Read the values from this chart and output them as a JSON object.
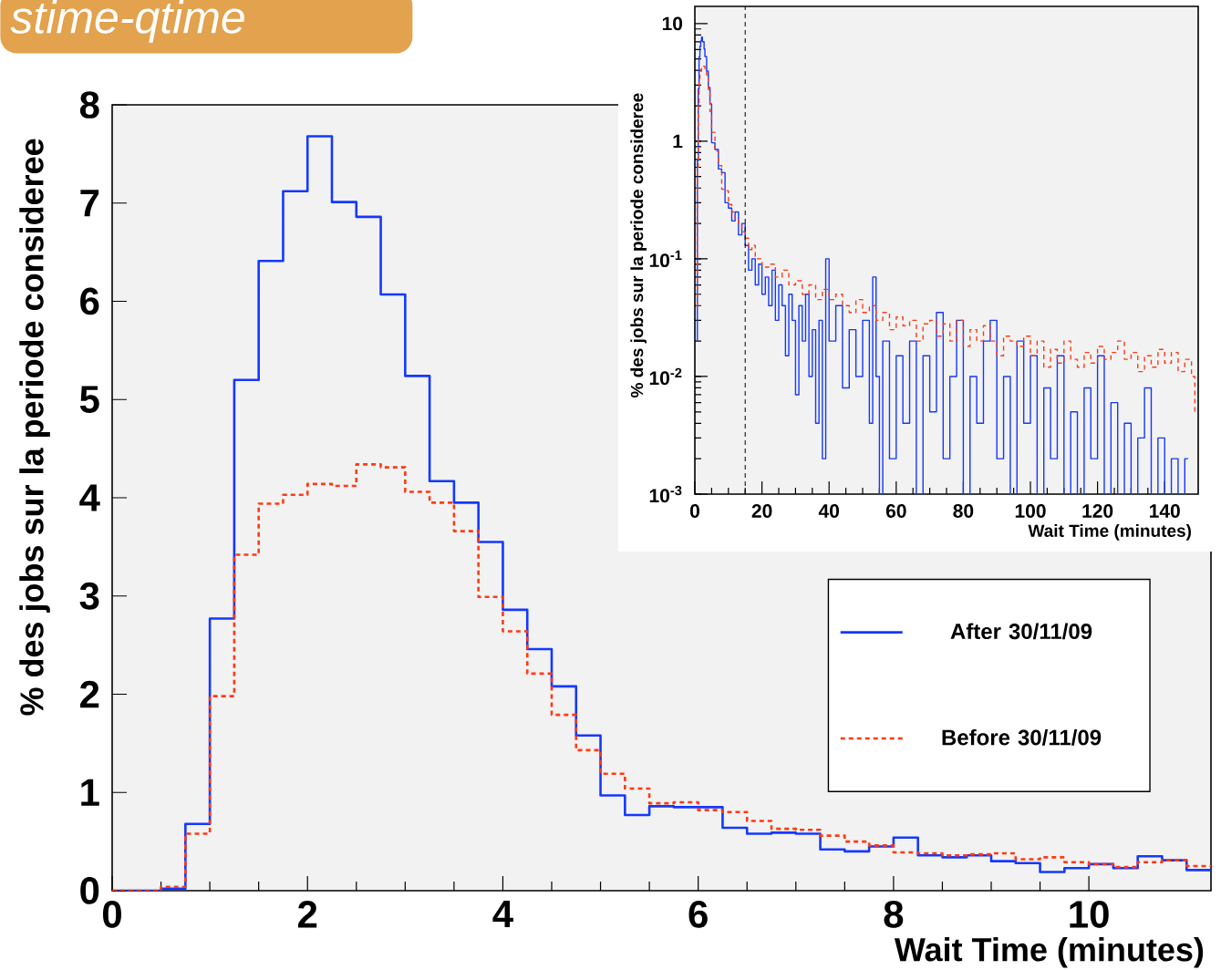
{
  "chart_data": [
    {
      "type": "histogram",
      "title": "stime-qtime",
      "xlabel": "Wait Time (minutes)",
      "ylabel": "% des jobs sur la periode consideree",
      "bins": [
        0,
        0.25,
        0.5,
        0.75,
        1,
        1.25,
        1.5,
        1.75,
        2,
        2.25,
        2.5,
        2.75,
        3,
        3.25,
        3.5,
        3.75,
        4,
        4.25,
        4.5,
        4.75,
        5,
        5.25,
        5.5,
        5.75,
        6,
        6.25,
        6.5,
        6.75,
        7,
        7.25,
        7.5,
        7.75,
        8,
        8.25,
        8.5,
        8.75,
        9,
        9.25,
        9.5,
        9.75,
        10,
        10.25,
        10.5,
        10.75,
        11,
        11.25
      ],
      "series": [
        {
          "name": "After 30/11/09",
          "color": "#1438ff",
          "line_style": "solid",
          "values": [
            0,
            0,
            0.02,
            0.68,
            2.77,
            5.2,
            6.41,
            7.12,
            7.68,
            7.01,
            6.86,
            6.07,
            5.24,
            4.17,
            3.95,
            3.55,
            2.86,
            2.46,
            2.08,
            1.58,
            0.97,
            0.77,
            0.86,
            0.85,
            0.85,
            0.64,
            0.58,
            0.59,
            0.58,
            0.42,
            0.4,
            0.45,
            0.54,
            0.36,
            0.34,
            0.36,
            0.3,
            0.28,
            0.19,
            0.23,
            0.27,
            0.23,
            0.35,
            0.31,
            0.21
          ]
        },
        {
          "name": "Before 30/11/09",
          "color": "#ff3a14",
          "line_style": "dashed",
          "values": [
            0,
            0,
            0.04,
            0.58,
            1.98,
            3.42,
            3.94,
            4.03,
            4.14,
            4.12,
            4.34,
            4.31,
            4.06,
            3.95,
            3.66,
            2.99,
            2.64,
            2.21,
            1.79,
            1.43,
            1.19,
            1.04,
            0.89,
            0.9,
            0.82,
            0.8,
            0.71,
            0.63,
            0.62,
            0.56,
            0.5,
            0.46,
            0.39,
            0.38,
            0.36,
            0.37,
            0.38,
            0.32,
            0.34,
            0.29,
            0.27,
            0.24,
            0.29,
            0.31,
            0.25
          ]
        }
      ],
      "xlim": [
        0,
        11.25
      ],
      "ylim": [
        0,
        8
      ],
      "xticks": [
        0,
        2,
        4,
        6,
        8,
        10
      ],
      "yticks": [
        0,
        1,
        2,
        3,
        4,
        5,
        6,
        7,
        8
      ],
      "legend": "right"
    },
    {
      "type": "step",
      "xlabel": "Wait Time (minutes)",
      "ylabel": "% des jobs sur la periode consideree",
      "log": "y",
      "series": [
        {
          "color": "#1438ff",
          "line_style": "solid",
          "x": [
            0.5,
            0.75,
            1,
            1.25,
            1.5,
            1.75,
            2,
            2.25,
            2.75,
            3,
            3.5,
            4,
            4.5,
            5,
            6,
            7,
            8,
            9,
            10,
            11,
            12,
            13,
            14,
            15,
            16,
            17,
            18,
            19,
            20,
            21,
            22,
            23,
            24,
            25,
            26,
            27,
            28,
            29,
            30,
            31,
            32,
            33,
            34,
            35,
            36,
            37,
            38,
            39,
            40,
            42,
            44,
            46,
            48,
            50,
            52,
            53,
            54,
            55,
            56,
            58,
            60,
            62,
            64,
            66,
            68,
            70,
            72,
            74,
            76,
            78,
            80,
            82,
            84,
            86,
            88,
            90,
            92,
            94,
            96,
            98,
            100,
            102,
            104,
            106,
            108,
            110,
            112,
            114,
            116,
            118,
            120,
            122,
            124,
            126,
            128,
            130,
            132,
            134,
            136,
            138,
            140,
            142,
            144,
            146,
            147
          ],
          "values": [
            0.02,
            0.68,
            2.77,
            5.2,
            6.41,
            7.12,
            7.68,
            7.01,
            6.07,
            5.24,
            3.95,
            2.86,
            2.08,
            0.97,
            0.85,
            0.58,
            0.54,
            0.3,
            0.27,
            0.21,
            0.25,
            0.16,
            0.2,
            0.13,
            0.08,
            0.1,
            0.06,
            0.09,
            0.05,
            0.07,
            0.04,
            0.08,
            0.03,
            0.06,
            0.04,
            0.015,
            0.05,
            0.03,
            0.007,
            0.04,
            0.02,
            0.05,
            0.01,
            0.025,
            0.004,
            0.03,
            0.002,
            0.1,
            0.02,
            0.04,
            0.008,
            0.025,
            0.01,
            0.03,
            0.004,
            0.07,
            0.01,
            0.001,
            0.02,
            0.002,
            0.015,
            0.004,
            0.02,
            0.001,
            0.015,
            0.005,
            0.035,
            0.002,
            0.01,
            0.03,
            0.001,
            0.01,
            0.004,
            0.02,
            0.03,
            0.002,
            0.01,
            0.001,
            0.02,
            0.004,
            0.015,
            0.001,
            0.008,
            0.002,
            0.015,
            0.001,
            0.005,
            0.001,
            0.008,
            0.002,
            0.015,
            0.001,
            0.006,
            0.001,
            0.004,
            0.001,
            0.003,
            0.008,
            0.001,
            0.003,
            0.001,
            0.002,
            0.001,
            0.002,
            0.002
          ]
        },
        {
          "color": "#ff3a14",
          "line_style": "dashed",
          "x": [
            0.5,
            0.75,
            1,
            1.25,
            1.5,
            2,
            2.5,
            3,
            3.5,
            4,
            4.5,
            5,
            6,
            7,
            8,
            9,
            10,
            11,
            12,
            13,
            14,
            15,
            16,
            17,
            18,
            20,
            22,
            24,
            26,
            28,
            30,
            32,
            34,
            36,
            38,
            40,
            42,
            44,
            46,
            48,
            50,
            52,
            54,
            56,
            58,
            60,
            62,
            64,
            66,
            68,
            70,
            72,
            74,
            76,
            78,
            80,
            82,
            84,
            86,
            88,
            90,
            92,
            94,
            96,
            98,
            100,
            102,
            104,
            106,
            108,
            110,
            112,
            114,
            116,
            118,
            120,
            122,
            124,
            126,
            128,
            130,
            132,
            134,
            136,
            138,
            140,
            142,
            144,
            146,
            148,
            149,
            150
          ],
          "values": [
            0.04,
            0.58,
            1.98,
            3.42,
            3.94,
            4.14,
            4.34,
            4.06,
            3.66,
            2.64,
            1.79,
            1.19,
            0.82,
            0.62,
            0.39,
            0.38,
            0.29,
            0.25,
            0.22,
            0.2,
            0.17,
            0.15,
            0.12,
            0.13,
            0.1,
            0.085,
            0.09,
            0.07,
            0.08,
            0.06,
            0.065,
            0.05,
            0.06,
            0.045,
            0.055,
            0.045,
            0.05,
            0.04,
            0.035,
            0.045,
            0.035,
            0.04,
            0.03,
            0.035,
            0.025,
            0.032,
            0.027,
            0.03,
            0.02,
            0.028,
            0.03,
            0.022,
            0.028,
            0.02,
            0.03,
            0.018,
            0.025,
            0.02,
            0.027,
            0.02,
            0.015,
            0.022,
            0.02,
            0.018,
            0.022,
            0.015,
            0.02,
            0.012,
            0.017,
            0.013,
            0.02,
            0.014,
            0.012,
            0.016,
            0.013,
            0.018,
            0.014,
            0.016,
            0.02,
            0.014,
            0.016,
            0.011,
            0.015,
            0.012,
            0.017,
            0.013,
            0.016,
            0.011,
            0.014,
            0.01,
            0.005,
            0.005
          ]
        }
      ],
      "xlim": [
        0,
        150
      ],
      "ylim": [
        0.001,
        14
      ],
      "xticks": [
        0,
        20,
        40,
        60,
        80,
        100,
        120,
        140
      ],
      "yticks": [
        {
          "value": 0.001,
          "label": "10$^{-3}$"
        },
        {
          "value": 0.01,
          "label": "10$^{-2}$"
        },
        {
          "value": 0.1,
          "label": "10$^{-1}$"
        },
        1,
        10
      ],
      "ref_lines": [
        {
          "axis": "x",
          "value": 15,
          "color": "#000000",
          "line_style": "dashed"
        }
      ]
    }
  ]
}
